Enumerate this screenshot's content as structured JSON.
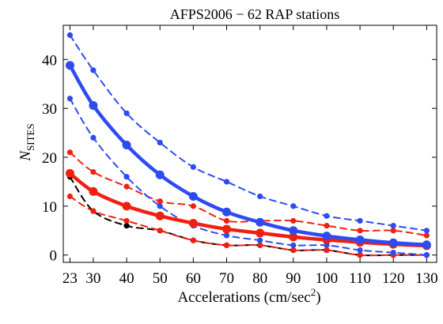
{
  "chart_data": {
    "type": "line",
    "title": "AFPS2006 − 62 RAP stations",
    "xlabel_main": "Accelerations (cm/sec",
    "xlabel_sup": "2",
    "xlabel_close": ")",
    "ylabel_main": "N",
    "ylabel_sub": "SITES",
    "x": [
      23,
      30,
      40,
      50,
      60,
      70,
      80,
      90,
      100,
      110,
      120,
      130
    ],
    "xticks": [
      23,
      30,
      40,
      50,
      60,
      70,
      80,
      90,
      100,
      110,
      120,
      130
    ],
    "yticks": [
      0,
      10,
      20,
      30,
      40
    ],
    "xlim": [
      21,
      133
    ],
    "ylim": [
      -1.5,
      47
    ],
    "grid": false,
    "colors": {
      "blue": "#2d4bf0",
      "red": "#f02010",
      "black": "#000000"
    },
    "series": [
      {
        "color": "blue",
        "style": "solid",
        "values": [
          38.8,
          30.6,
          22.5,
          16.4,
          12.0,
          8.8,
          6.7,
          5.0,
          3.9,
          3.1,
          2.5,
          2.1
        ]
      },
      {
        "color": "blue",
        "style": "dashed",
        "values": [
          45.0,
          37.8,
          29.0,
          23.0,
          18.0,
          15.0,
          12.0,
          10.0,
          8.0,
          7.0,
          6.0,
          5.0
        ]
      },
      {
        "color": "blue",
        "style": "dashed",
        "values": [
          32.0,
          24.0,
          16.0,
          10.0,
          6.0,
          4.0,
          3.0,
          2.0,
          2.0,
          1.0,
          0.5,
          0.0
        ]
      },
      {
        "color": "red",
        "style": "solid",
        "values": [
          16.7,
          13.0,
          10.0,
          8.0,
          6.5,
          5.3,
          4.5,
          3.7,
          3.1,
          2.6,
          2.2,
          1.9
        ]
      },
      {
        "color": "red",
        "style": "dashed",
        "values": [
          21.0,
          17.0,
          14.0,
          11.0,
          10.0,
          7.0,
          7.0,
          7.0,
          6.0,
          5.0,
          5.0,
          4.0
        ]
      },
      {
        "color": "red",
        "style": "dashed",
        "values": [
          12.0,
          9.0,
          7.0,
          5.0,
          3.0,
          2.0,
          2.0,
          1.0,
          1.0,
          0.0,
          0.0,
          0.0
        ]
      },
      {
        "color": "black",
        "style": "dashed",
        "values": [
          16.0,
          9.0,
          6.0,
          5.0,
          3.0,
          2.0,
          2.0,
          1.0,
          1.0,
          0.0,
          0.0,
          0.0
        ]
      }
    ]
  }
}
